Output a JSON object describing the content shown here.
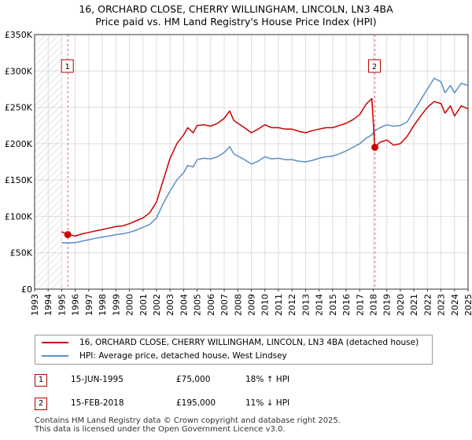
{
  "chart_data": {
    "type": "line",
    "title": "16, ORCHARD CLOSE, CHERRY WILLINGHAM, LINCOLN, LN3 4BA",
    "subtitle": "Price paid vs. HM Land Registry's House Price Index (HPI)",
    "xlabel": "",
    "ylabel": "",
    "xlim": [
      1993,
      2025
    ],
    "ylim": [
      0,
      350000
    ],
    "x_ticks": [
      "1993",
      "1994",
      "1995",
      "1996",
      "1997",
      "1998",
      "1999",
      "2000",
      "2001",
      "2002",
      "2003",
      "2004",
      "2005",
      "2006",
      "2007",
      "2008",
      "2009",
      "2010",
      "2011",
      "2012",
      "2013",
      "2014",
      "2015",
      "2016",
      "2017",
      "2018",
      "2019",
      "2020",
      "2021",
      "2022",
      "2023",
      "2024",
      "2025"
    ],
    "y_ticks": [
      "£0",
      "£50K",
      "£100K",
      "£150K",
      "£200K",
      "£250K",
      "£300K",
      "£350K"
    ],
    "y_tick_values": [
      0,
      50000,
      100000,
      150000,
      200000,
      250000,
      300000,
      350000
    ],
    "hatched_before": 1995.0,
    "series": [
      {
        "name": "16, ORCHARD CLOSE, CHERRY WILLINGHAM, LINCOLN, LN3 4BA (detached house)",
        "color": "#cc0000",
        "x": [
          1995.0,
          1995.45,
          1996.0,
          1996.5,
          1997.0,
          1997.5,
          1998.0,
          1998.5,
          1999.0,
          1999.5,
          2000.0,
          2000.5,
          2001.0,
          2001.5,
          2002.0,
          2002.5,
          2003.0,
          2003.5,
          2004.0,
          2004.3,
          2004.7,
          2005.0,
          2005.5,
          2006.0,
          2006.5,
          2007.0,
          2007.4,
          2007.7,
          2008.0,
          2008.5,
          2009.0,
          2009.5,
          2010.0,
          2010.5,
          2011.0,
          2011.5,
          2012.0,
          2012.5,
          2013.0,
          2013.5,
          2014.0,
          2014.5,
          2015.0,
          2015.5,
          2016.0,
          2016.5,
          2017.0,
          2017.5,
          2017.9,
          2018.0,
          2018.12,
          2018.5,
          2019.0,
          2019.5,
          2020.0,
          2020.5,
          2021.0,
          2021.5,
          2022.0,
          2022.5,
          2023.0,
          2023.3,
          2023.7,
          2024.0,
          2024.5,
          2025.0
        ],
        "values": [
          79000,
          75000,
          73000,
          76000,
          78000,
          80000,
          82000,
          84000,
          86000,
          87000,
          90000,
          94000,
          98000,
          105000,
          120000,
          150000,
          180000,
          200000,
          212000,
          222000,
          215000,
          225000,
          226000,
          224000,
          228000,
          235000,
          245000,
          232000,
          228000,
          222000,
          215000,
          220000,
          226000,
          222000,
          222000,
          220000,
          220000,
          217000,
          215000,
          218000,
          220000,
          222000,
          222000,
          225000,
          228000,
          233000,
          240000,
          255000,
          262000,
          230000,
          195000,
          202000,
          205000,
          198000,
          200000,
          210000,
          225000,
          238000,
          250000,
          258000,
          255000,
          242000,
          252000,
          238000,
          252000,
          248000
        ]
      },
      {
        "name": "HPI: Average price, detached house, West Lindsey",
        "color": "#5b8fc7",
        "x": [
          1995.0,
          1995.45,
          1996.0,
          1996.5,
          1997.0,
          1997.5,
          1998.0,
          1998.5,
          1999.0,
          1999.5,
          2000.0,
          2000.5,
          2001.0,
          2001.5,
          2002.0,
          2002.5,
          2003.0,
          2003.5,
          2004.0,
          2004.3,
          2004.7,
          2005.0,
          2005.5,
          2006.0,
          2006.5,
          2007.0,
          2007.4,
          2007.7,
          2008.0,
          2008.5,
          2009.0,
          2009.5,
          2010.0,
          2010.5,
          2011.0,
          2011.5,
          2012.0,
          2012.5,
          2013.0,
          2013.5,
          2014.0,
          2014.5,
          2015.0,
          2015.5,
          2016.0,
          2016.5,
          2017.0,
          2017.5,
          2017.9,
          2018.0,
          2018.12,
          2018.5,
          2019.0,
          2019.5,
          2020.0,
          2020.5,
          2021.0,
          2021.5,
          2022.0,
          2022.5,
          2023.0,
          2023.3,
          2023.7,
          2024.0,
          2024.5,
          2025.0
        ],
        "values": [
          64000,
          63500,
          64000,
          66000,
          68000,
          70000,
          71500,
          73000,
          75000,
          76000,
          78000,
          81000,
          85000,
          89000,
          98000,
          118000,
          135000,
          150000,
          160000,
          170000,
          168000,
          178000,
          180000,
          179000,
          182000,
          188000,
          196000,
          186000,
          183000,
          178000,
          172000,
          176000,
          182000,
          179000,
          180000,
          178000,
          178000,
          176000,
          175000,
          177000,
          180000,
          182000,
          183000,
          186000,
          190000,
          195000,
          200000,
          208000,
          212000,
          215000,
          218000,
          222000,
          226000,
          224000,
          225000,
          230000,
          245000,
          260000,
          275000,
          290000,
          285000,
          270000,
          280000,
          270000,
          283000,
          280000
        ]
      }
    ],
    "annotations": [
      {
        "label": "1",
        "x": 1995.45,
        "y": 75000,
        "date": "15-JUN-1995",
        "price": "£75,000",
        "hpi_change": "18% ↑ HPI"
      },
      {
        "label": "2",
        "x": 2018.12,
        "y": 195000,
        "date": "15-FEB-2018",
        "price": "£195,000",
        "hpi_change": "11% ↓ HPI"
      }
    ],
    "legend_position": "bottom"
  },
  "footer": {
    "line1": "Contains HM Land Registry data © Crown copyright and database right 2025.",
    "line2": "This data is licensed under the Open Government Licence v3.0."
  }
}
